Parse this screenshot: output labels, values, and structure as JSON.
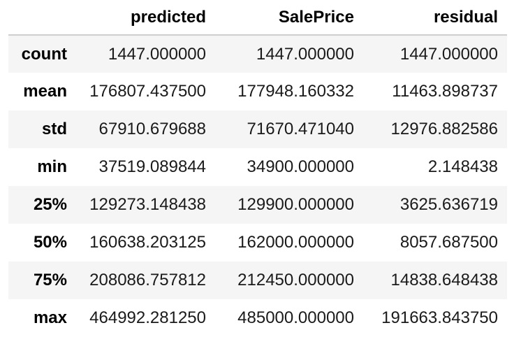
{
  "table": {
    "index_header": "",
    "columns": [
      "predicted",
      "SalePrice",
      "residual"
    ],
    "rows": [
      {
        "label": "count",
        "values": [
          "1447.000000",
          "1447.000000",
          "1447.000000"
        ]
      },
      {
        "label": "mean",
        "values": [
          "176807.437500",
          "177948.160332",
          "11463.898737"
        ]
      },
      {
        "label": "std",
        "values": [
          "67910.679688",
          "71670.471040",
          "12976.882586"
        ]
      },
      {
        "label": "min",
        "values": [
          "37519.089844",
          "34900.000000",
          "2.148438"
        ]
      },
      {
        "label": "25%",
        "values": [
          "129273.148438",
          "129900.000000",
          "3625.636719"
        ]
      },
      {
        "label": "50%",
        "values": [
          "160638.203125",
          "162000.000000",
          "8057.687500"
        ]
      },
      {
        "label": "75%",
        "values": [
          "208086.757812",
          "212450.000000",
          "14838.648438"
        ]
      },
      {
        "label": "max",
        "values": [
          "464992.281250",
          "485000.000000",
          "191663.843750"
        ]
      }
    ]
  },
  "colors": {
    "stripe": "#f5f5f5",
    "header_rule": "#cfcfcf"
  }
}
